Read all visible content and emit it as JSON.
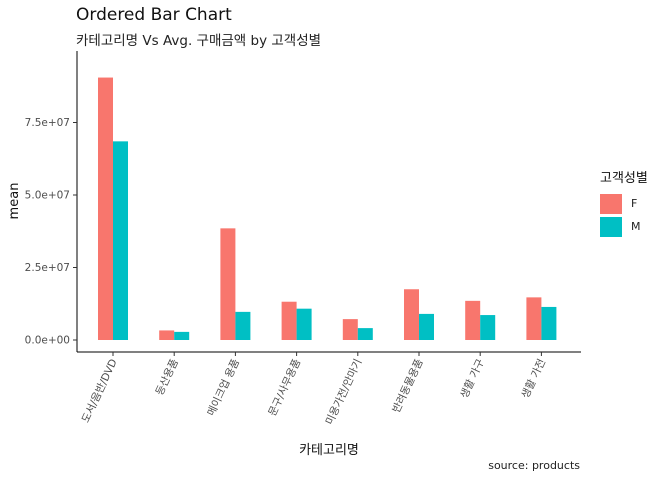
{
  "chart_data": {
    "type": "bar",
    "title": "Ordered Bar Chart",
    "subtitle": "카테고리명 Vs Avg. 구매금액 by 고객성별",
    "xlabel": "카테고리명",
    "ylabel": "mean",
    "caption": "source: products",
    "categories": [
      "도서/음반/DVD",
      "등산용품",
      "메이크업 용품",
      "문구/사무용품",
      "미용가전/안마기",
      "반려동물용품",
      "생활 가구",
      "생활 가전"
    ],
    "series": [
      {
        "name": "F",
        "color": "#F8766D",
        "values": [
          90500000,
          3300000,
          38500000,
          13200000,
          7200000,
          17500000,
          13500000,
          14700000
        ]
      },
      {
        "name": "M",
        "color": "#00BFC4",
        "values": [
          68500000,
          2800000,
          9700000,
          10800000,
          4100000,
          9000000,
          8600000,
          11400000
        ]
      }
    ],
    "yticks": [
      0,
      25000000,
      50000000,
      75000000
    ],
    "ytick_labels": [
      "0.0e+00",
      "2.5e+07",
      "5.0e+07",
      "7.5e+07"
    ],
    "ylim": [
      0,
      95000000
    ],
    "legend_title": "고객성별",
    "legend_position": "right",
    "grid": false
  }
}
